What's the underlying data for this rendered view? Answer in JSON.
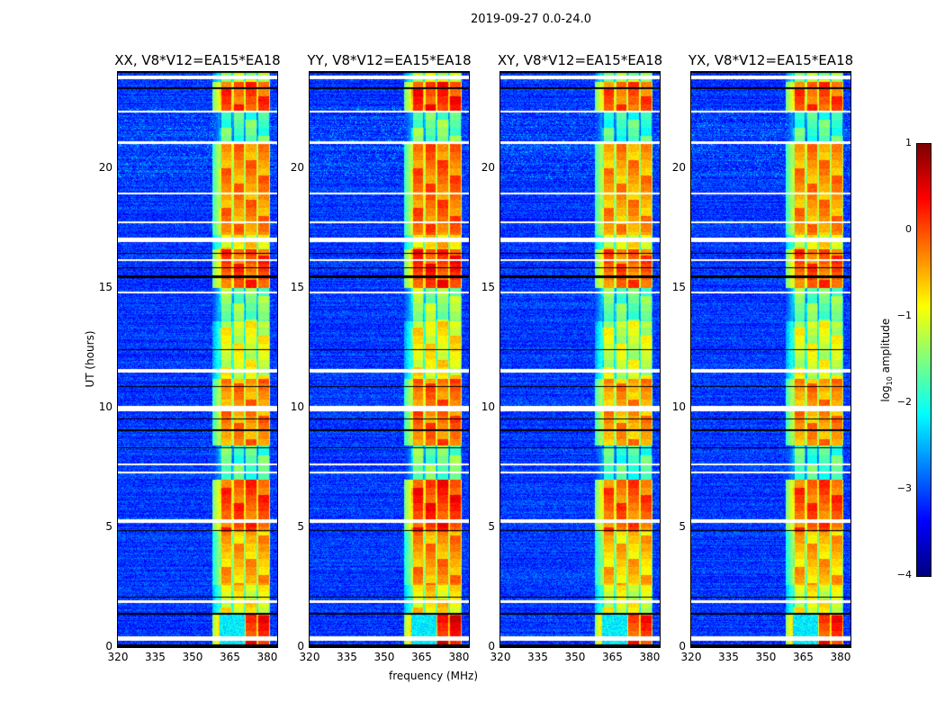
{
  "suptitle": "2019-09-27 0.0-24.0",
  "chart_data": {
    "type": "heatmap",
    "title": "2019-09-27 0.0-24.0",
    "xlabel": "frequency (MHz)",
    "ylabel": "UT (hours)",
    "xlim": [
      320,
      384
    ],
    "ylim": [
      0,
      24
    ],
    "xticks": [
      "320",
      "335",
      "350",
      "365",
      "380"
    ],
    "xtick_values": [
      320,
      335,
      350,
      365,
      380
    ],
    "yticks": [
      "0",
      "5",
      "10",
      "15",
      "20"
    ],
    "ytick_values": [
      0,
      5,
      10,
      15,
      20
    ],
    "panels": [
      {
        "title": "XX, V8*V12=EA15*EA18",
        "band_offset": 0
      },
      {
        "title": "YY, V8*V12=EA15*EA18",
        "band_offset": 0.15
      },
      {
        "title": "XY, V8*V12=EA15*EA18",
        "band_offset": -0.1
      },
      {
        "title": "YX, V8*V12=EA15*EA18",
        "band_offset": -0.05
      }
    ],
    "colorbar": {
      "label": "log10 amplitude",
      "label_main": "log",
      "label_sub": "10",
      "label_rest": " amplitude",
      "range": [
        -4,
        1
      ],
      "ticks": [
        "−4",
        "−3",
        "−2",
        "−1",
        "0",
        "1"
      ],
      "tick_values": [
        -4,
        -3,
        -2,
        -1,
        0,
        1
      ],
      "colormap": "jet"
    },
    "background_level_log10": -3.1,
    "rfi_band_mhz": [
      361,
      381
    ],
    "band_level_segments_hours": [
      {
        "t": [
          0.0,
          1.4
        ],
        "level": 0.2,
        "low_band_only": true
      },
      {
        "t": [
          1.4,
          2.6
        ],
        "level": -0.9
      },
      {
        "t": [
          2.6,
          4.8
        ],
        "level": -0.5
      },
      {
        "t": [
          4.8,
          7.0
        ],
        "level": 0.0
      },
      {
        "t": [
          7.0,
          8.4
        ],
        "level": -1.7
      },
      {
        "t": [
          8.4,
          11.2
        ],
        "level": -0.3
      },
      {
        "t": [
          11.2,
          13.6
        ],
        "level": -1.0
      },
      {
        "t": [
          13.6,
          15.0
        ],
        "level": -1.5
      },
      {
        "t": [
          15.0,
          16.6
        ],
        "level": 0.0
      },
      {
        "t": [
          16.6,
          17.2
        ],
        "level": -0.8
      },
      {
        "t": [
          17.2,
          21.0
        ],
        "level": -0.3
      },
      {
        "t": [
          21.0,
          22.4
        ],
        "level": -1.7
      },
      {
        "t": [
          22.4,
          23.6
        ],
        "level": 0.0
      },
      {
        "t": [
          23.6,
          24.0
        ],
        "level": -1.2
      }
    ],
    "flagged_hours_white": [
      [
        0.25,
        0.45
      ],
      [
        1.85,
        1.95
      ],
      [
        5.2,
        5.35
      ],
      [
        7.25,
        7.32
      ],
      [
        7.6,
        7.65
      ],
      [
        9.85,
        10.05
      ],
      [
        11.45,
        11.6
      ],
      [
        14.75,
        14.85
      ],
      [
        16.1,
        16.2
      ],
      [
        16.9,
        17.1
      ],
      [
        17.7,
        17.75
      ],
      [
        18.9,
        18.95
      ],
      [
        21.0,
        21.1
      ],
      [
        22.3,
        22.4
      ],
      [
        23.7,
        23.85
      ]
    ],
    "dropout_hours_black": [
      [
        0.0,
        0.12
      ],
      [
        1.35,
        1.42
      ],
      [
        2.05,
        2.1
      ],
      [
        4.85,
        4.9
      ],
      [
        8.3,
        8.35
      ],
      [
        9.0,
        9.1
      ],
      [
        9.5,
        9.55
      ],
      [
        10.85,
        10.9
      ],
      [
        12.4,
        12.45
      ],
      [
        15.4,
        15.5
      ],
      [
        15.8,
        15.85
      ],
      [
        16.4,
        16.45
      ],
      [
        21.05,
        21.1
      ],
      [
        23.3,
        23.35
      ],
      [
        23.95,
        24.0
      ]
    ]
  }
}
